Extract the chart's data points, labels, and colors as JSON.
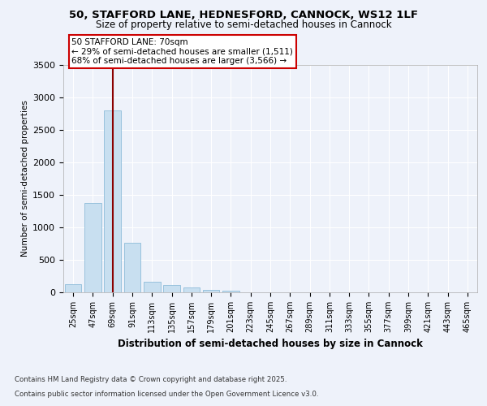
{
  "title_line1": "50, STAFFORD LANE, HEDNESFORD, CANNOCK, WS12 1LF",
  "title_line2": "Size of property relative to semi-detached houses in Cannock",
  "xlabel": "Distribution of semi-detached houses by size in Cannock",
  "ylabel": "Number of semi-detached properties",
  "categories": [
    "25sqm",
    "47sqm",
    "69sqm",
    "91sqm",
    "113sqm",
    "135sqm",
    "157sqm",
    "179sqm",
    "201sqm",
    "223sqm",
    "245sqm",
    "267sqm",
    "289sqm",
    "311sqm",
    "333sqm",
    "355sqm",
    "377sqm",
    "399sqm",
    "421sqm",
    "443sqm",
    "465sqm"
  ],
  "values": [
    130,
    1380,
    2800,
    760,
    160,
    110,
    70,
    40,
    20,
    0,
    0,
    0,
    0,
    0,
    0,
    0,
    0,
    0,
    0,
    0,
    0
  ],
  "bar_color": "#c8dff0",
  "bar_edge_color": "#7fb3d3",
  "vline_x": 2,
  "vline_color": "#8b0000",
  "annotation_title": "50 STAFFORD LANE: 70sqm",
  "annotation_line1": "← 29% of semi-detached houses are smaller (1,511)",
  "annotation_line2": "68% of semi-detached houses are larger (3,566) →",
  "annotation_box_color": "#ffffff",
  "annotation_box_edge": "#cc0000",
  "ylim": [
    0,
    3500
  ],
  "yticks": [
    0,
    500,
    1000,
    1500,
    2000,
    2500,
    3000,
    3500
  ],
  "footer_line1": "Contains HM Land Registry data © Crown copyright and database right 2025.",
  "footer_line2": "Contains public sector information licensed under the Open Government Licence v3.0.",
  "bg_color": "#eef2fa",
  "plot_bg_color": "#eef2fa",
  "grid_color": "#ffffff"
}
